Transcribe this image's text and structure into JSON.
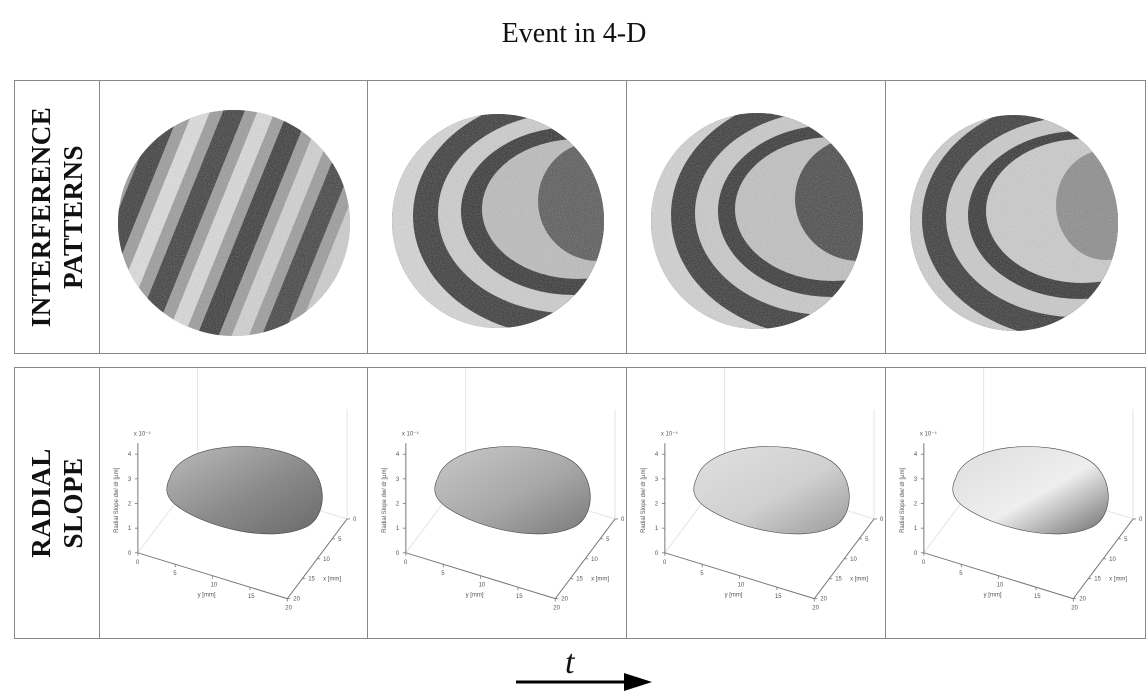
{
  "title": "Event in 4-D",
  "rows": {
    "interference": {
      "label": "INTERFERENCE\nPATTERNS"
    },
    "slope": {
      "label": "RADIAL\nSLOPE"
    }
  },
  "plot_axes": {
    "zlabel": "Radial Slope dw/ dr [µm]",
    "xlabel": "y [mm]",
    "ylabel": "x [mm]",
    "exponent": "x 10⁻⁴",
    "x_ticks": [
      "0",
      "5",
      "10",
      "15",
      "20"
    ],
    "y_ticks": [
      "0",
      "5",
      "10",
      "15",
      "20"
    ],
    "z_ticks": [
      "0",
      "1",
      "2",
      "3",
      "4"
    ]
  },
  "time_axis": {
    "label": "t"
  }
}
